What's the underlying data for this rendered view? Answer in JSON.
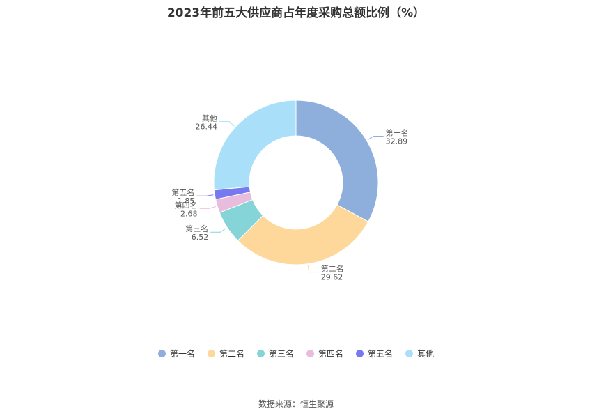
{
  "chart_data": {
    "type": "pie",
    "variant": "donut",
    "title": "2023年前五大供应商占年度采购总额比例（%）",
    "categories": [
      "第一名",
      "第二名",
      "第三名",
      "第四名",
      "第五名",
      "其他"
    ],
    "values": [
      32.89,
      29.62,
      6.52,
      2.68,
      1.85,
      26.44
    ],
    "value_labels": [
      "32.89",
      "29.62",
      "6.52",
      "2.68",
      "1.85",
      "26.44"
    ],
    "colors": [
      "#8eaedb",
      "#fdd89a",
      "#85d4d8",
      "#e8bcdd",
      "#7779ee",
      "#a9dff9"
    ],
    "legend_position": "bottom"
  },
  "source": "数据来源：恒生聚源"
}
